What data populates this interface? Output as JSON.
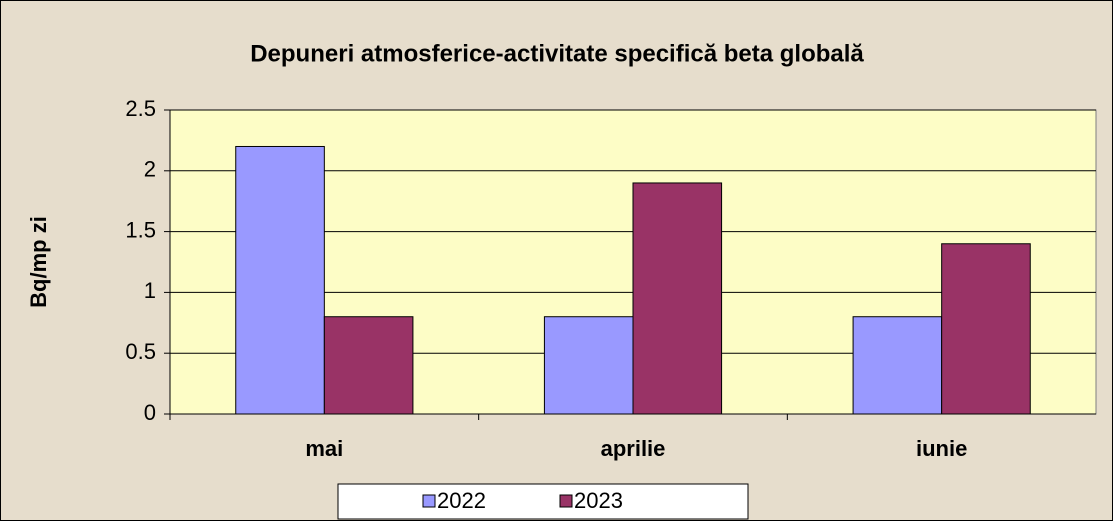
{
  "chart_data": {
    "type": "bar",
    "title": "Depuneri atmosferice-activitate specifică beta globală",
    "y_label": "Bq/mp zi",
    "categories": [
      "mai",
      "aprilie",
      "iunie"
    ],
    "series": [
      {
        "name": "2022",
        "color": "#9999ff",
        "values": [
          2.2,
          0.8,
          0.8
        ]
      },
      {
        "name": "2023",
        "color": "#993366",
        "values": [
          0.8,
          1.9,
          1.4
        ]
      }
    ],
    "ylim": [
      0,
      2.5
    ],
    "yticks": [
      0,
      0.5,
      1,
      1.5,
      2,
      2.5
    ],
    "grid": true,
    "legend": "bottom"
  }
}
